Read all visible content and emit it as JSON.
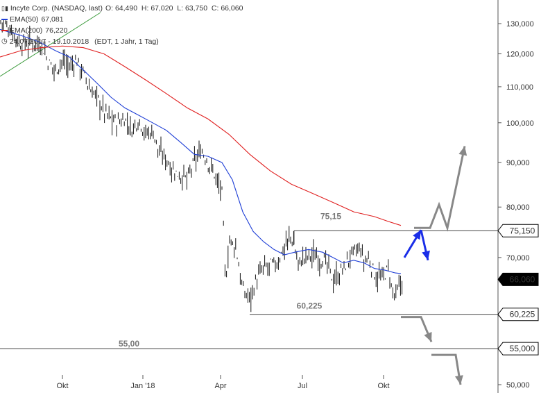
{
  "header": {
    "title": "Incyte Corp. (NASDAQ, last)",
    "ohlc": "O: 64,490  H: 67,020  L: 63,750  C: 66,060",
    "ema50_label": "EMA(50)",
    "ema50_value": "67,081",
    "ema200_label": "EMA(200)",
    "ema200_value": "76,220",
    "range": "24.07.2017 - 19.10.2018",
    "interval": "(EDT, 1 Jahr, 1 Tag)",
    "ema50_color": "#1f3fd6",
    "ema200_color": "#e02020"
  },
  "chart_data": {
    "type": "line",
    "x_tick_labels": [
      "Okt",
      "Jan '18",
      "Apr",
      "Jul",
      "Okt"
    ],
    "y_tick_labels": [
      "130,000",
      "120,000",
      "110,000",
      "100,000",
      "90,000",
      "80,000",
      "70,000",
      "60,000",
      "50,000"
    ],
    "ylim": [
      50,
      134
    ],
    "y_scale": "log",
    "series": [
      {
        "name": "EMA(50)",
        "color": "#1f3fd6",
        "points": [
          [
            0,
            128
          ],
          [
            30,
            126
          ],
          [
            55,
            124
          ],
          [
            80,
            121
          ],
          [
            100,
            119
          ],
          [
            120,
            115
          ],
          [
            140,
            111
          ],
          [
            160,
            107
          ],
          [
            180,
            104
          ],
          [
            200,
            102
          ],
          [
            220,
            100
          ],
          [
            240,
            98
          ],
          [
            260,
            95
          ],
          [
            280,
            92
          ],
          [
            300,
            91.5
          ],
          [
            320,
            90
          ],
          [
            335,
            86
          ],
          [
            350,
            79
          ],
          [
            365,
            75
          ],
          [
            380,
            73
          ],
          [
            395,
            71.5
          ],
          [
            410,
            70.5
          ],
          [
            425,
            71
          ],
          [
            445,
            71.5
          ],
          [
            465,
            71
          ],
          [
            480,
            70
          ],
          [
            495,
            69
          ],
          [
            510,
            69.5
          ],
          [
            525,
            69
          ],
          [
            540,
            68
          ],
          [
            555,
            67.7
          ],
          [
            570,
            67.2
          ],
          [
            578,
            67.1
          ]
        ]
      },
      {
        "name": "EMA(200)",
        "color": "#e02020",
        "points": [
          [
            0,
            119
          ],
          [
            30,
            121
          ],
          [
            60,
            122
          ],
          [
            90,
            122.5
          ],
          [
            120,
            122
          ],
          [
            150,
            120
          ],
          [
            180,
            116
          ],
          [
            210,
            112
          ],
          [
            240,
            108
          ],
          [
            270,
            104
          ],
          [
            300,
            101
          ],
          [
            330,
            97
          ],
          [
            360,
            92
          ],
          [
            390,
            88
          ],
          [
            420,
            85
          ],
          [
            450,
            83
          ],
          [
            480,
            81
          ],
          [
            510,
            79
          ],
          [
            540,
            78
          ],
          [
            560,
            77
          ],
          [
            578,
            76.2
          ]
        ]
      }
    ],
    "price_path": [
      [
        0,
        131
      ],
      [
        15,
        128
      ],
      [
        30,
        123
      ],
      [
        45,
        124
      ],
      [
        60,
        123
      ],
      [
        70,
        117
      ],
      [
        80,
        115
      ],
      [
        90,
        118
      ],
      [
        100,
        116
      ],
      [
        110,
        118
      ],
      [
        120,
        114
      ],
      [
        130,
        109
      ],
      [
        140,
        107
      ],
      [
        150,
        103
      ],
      [
        160,
        101
      ],
      [
        170,
        100
      ],
      [
        180,
        101
      ],
      [
        190,
        98
      ],
      [
        200,
        101
      ],
      [
        210,
        97
      ],
      [
        220,
        98
      ],
      [
        230,
        92
      ],
      [
        240,
        91
      ],
      [
        250,
        88
      ],
      [
        260,
        87
      ],
      [
        270,
        86
      ],
      [
        280,
        90
      ],
      [
        290,
        93
      ],
      [
        300,
        90
      ],
      [
        310,
        87
      ],
      [
        320,
        83
      ],
      [
        325,
        65
      ],
      [
        330,
        73
      ],
      [
        340,
        72
      ],
      [
        350,
        64
      ],
      [
        360,
        63
      ],
      [
        370,
        66
      ],
      [
        380,
        68
      ],
      [
        390,
        68.5
      ],
      [
        400,
        69
      ],
      [
        410,
        72
      ],
      [
        420,
        74
      ],
      [
        430,
        69
      ],
      [
        440,
        70
      ],
      [
        450,
        70.5
      ],
      [
        460,
        70
      ],
      [
        470,
        69
      ],
      [
        480,
        66
      ],
      [
        490,
        67
      ],
      [
        500,
        69
      ],
      [
        510,
        71
      ],
      [
        520,
        71.5
      ],
      [
        525,
        69
      ],
      [
        530,
        70
      ],
      [
        540,
        67
      ],
      [
        550,
        66
      ],
      [
        560,
        68
      ],
      [
        565,
        64
      ],
      [
        570,
        63
      ],
      [
        575,
        64.5
      ],
      [
        580,
        66.06
      ]
    ],
    "levels": [
      {
        "label": "75,15",
        "value": 75.15
      },
      {
        "label": "60,225",
        "value": 60.225
      },
      {
        "label": "55,00",
        "value": 55.0
      }
    ],
    "price_badges": [
      {
        "label": "75,150",
        "style": "outline"
      },
      {
        "label": "66,060",
        "style": "filled"
      },
      {
        "label": "60,225",
        "style": "outline"
      },
      {
        "label": "55,000",
        "style": "outline"
      }
    ],
    "arrows": {
      "blue_up_down": {
        "color": "#1a2ee8",
        "points": [
          [
            583,
            70.0
          ],
          [
            607,
            75.3
          ],
          [
            617,
            69.5
          ]
        ]
      },
      "gray_bull": {
        "color": "#888888",
        "points": [
          [
            597,
            75.7
          ],
          [
            620,
            75.7
          ],
          [
            633,
            80.5
          ],
          [
            645,
            75.7
          ],
          [
            670,
            94
          ]
        ]
      },
      "gray_bear_1": {
        "color": "#888888",
        "points": [
          [
            578,
            59.8
          ],
          [
            607,
            59.8
          ],
          [
            622,
            56.0
          ]
        ]
      },
      "gray_bear_2": {
        "color": "#888888",
        "points": [
          [
            622,
            54.1
          ],
          [
            657,
            54.1
          ],
          [
            664,
            50.0
          ]
        ]
      }
    }
  }
}
